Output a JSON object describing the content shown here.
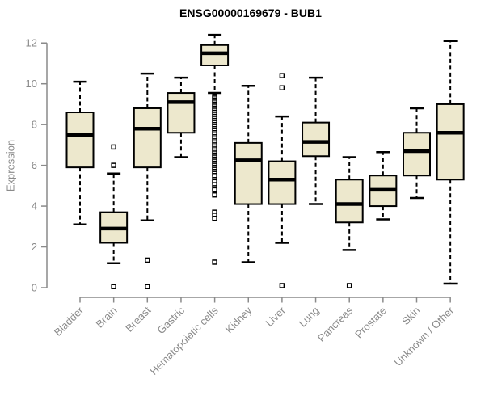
{
  "title": "ENSG00000169679 - BUB1",
  "chart_data": {
    "type": "box",
    "title": "ENSG00000169679 - BUB1",
    "xlabel": "",
    "ylabel": "Expression",
    "ylim": [
      0,
      12
    ],
    "yticks": [
      0,
      2,
      4,
      6,
      8,
      10,
      12
    ],
    "grid": false,
    "legend": false,
    "categories": [
      "Bladder",
      "Brain",
      "Breast",
      "Gastric",
      "Hematopoietic cells",
      "Kidney",
      "Liver",
      "Lung",
      "Pancreas",
      "Prostate",
      "Skin",
      "Unknown / Other"
    ],
    "boxes": [
      {
        "category": "Bladder",
        "low": 3.1,
        "q1": 5.9,
        "median": 7.5,
        "q3": 8.6,
        "high": 10.1,
        "outliers": []
      },
      {
        "category": "Brain",
        "low": 1.2,
        "q1": 2.2,
        "median": 2.9,
        "q3": 3.7,
        "high": 5.6,
        "outliers": [
          6.9,
          6.0,
          0.05
        ]
      },
      {
        "category": "Breast",
        "low": 3.3,
        "q1": 5.9,
        "median": 7.8,
        "q3": 8.8,
        "high": 10.5,
        "outliers": [
          1.35,
          0.05
        ]
      },
      {
        "category": "Gastric",
        "low": 6.4,
        "q1": 7.6,
        "median": 9.1,
        "q3": 9.55,
        "high": 10.3,
        "outliers": []
      },
      {
        "category": "Hematopoietic cells",
        "low": 9.55,
        "q1": 10.9,
        "median": 11.5,
        "q3": 11.9,
        "high": 12.4,
        "outliers": [
          9.4,
          9.3,
          9.2,
          9.1,
          9.0,
          8.9,
          8.8,
          8.7,
          8.6,
          8.5,
          8.4,
          8.3,
          8.2,
          8.1,
          8.0,
          7.9,
          7.8,
          7.7,
          7.6,
          7.5,
          7.4,
          7.3,
          7.2,
          7.1,
          7.0,
          6.9,
          6.8,
          6.7,
          6.6,
          6.5,
          6.4,
          6.3,
          6.2,
          6.1,
          6.0,
          5.9,
          5.8,
          5.7,
          5.6,
          5.5,
          5.3,
          5.2,
          5.05,
          4.9,
          4.8,
          4.55,
          3.7,
          3.55,
          3.4,
          1.25
        ]
      },
      {
        "category": "Kidney",
        "low": 1.25,
        "q1": 4.1,
        "median": 6.25,
        "q3": 7.1,
        "high": 9.9,
        "outliers": []
      },
      {
        "category": "Liver",
        "low": 2.2,
        "q1": 4.1,
        "median": 5.3,
        "q3": 6.2,
        "high": 8.4,
        "outliers": [
          10.4,
          9.8,
          0.1
        ]
      },
      {
        "category": "Lung",
        "low": 4.1,
        "q1": 6.45,
        "median": 7.15,
        "q3": 8.1,
        "high": 10.3,
        "outliers": []
      },
      {
        "category": "Pancreas",
        "low": 1.85,
        "q1": 3.2,
        "median": 4.1,
        "q3": 5.3,
        "high": 6.4,
        "outliers": [
          0.1
        ]
      },
      {
        "category": "Prostate",
        "low": 3.35,
        "q1": 4.0,
        "median": 4.8,
        "q3": 5.5,
        "high": 6.65,
        "outliers": []
      },
      {
        "category": "Skin",
        "low": 4.4,
        "q1": 5.5,
        "median": 6.7,
        "q3": 7.6,
        "high": 8.8,
        "outliers": []
      },
      {
        "category": "Unknown / Other",
        "low": 0.2,
        "q1": 5.3,
        "median": 7.6,
        "q3": 9.0,
        "high": 12.1,
        "outliers": []
      }
    ],
    "colors": {
      "box_fill": "#EDE8CD",
      "box_stroke": "#000000",
      "median": "#000000",
      "whisker": "#000000",
      "outlier_stroke": "#000000",
      "outlier_fill": "#ffffff",
      "axis": "#8a8a8a",
      "tick_label": "#8a8a8a",
      "title": "#000000",
      "background": "#ffffff"
    }
  }
}
